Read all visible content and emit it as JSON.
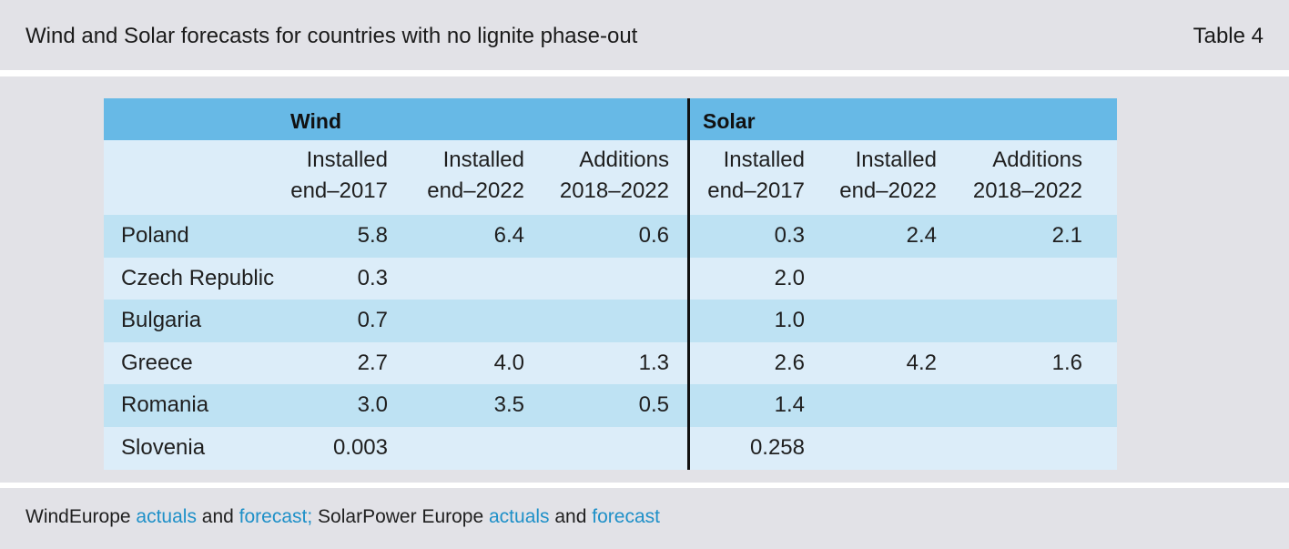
{
  "header": {
    "title": "Wind and Solar forecasts for countries with no lignite phase-out",
    "table_label": "Table 4"
  },
  "table": {
    "groups": {
      "wind": "Wind",
      "solar": "Solar"
    },
    "columns": {
      "wind_installed_2017": [
        "Installed",
        "end–2017"
      ],
      "wind_installed_2022": [
        "Installed",
        "end–2022"
      ],
      "wind_additions": [
        "Additions",
        "2018–2022"
      ],
      "solar_installed_2017": [
        "Installed",
        "end–2017"
      ],
      "solar_installed_2022": [
        "Installed",
        "end–2022"
      ],
      "solar_additions": [
        "Additions",
        "2018–2022"
      ]
    },
    "rows": [
      {
        "country": "Poland",
        "wind_2017": "5.8",
        "wind_2022": "6.4",
        "wind_add": "0.6",
        "solar_2017": "0.3",
        "solar_2022": "2.4",
        "solar_add": "2.1"
      },
      {
        "country": "Czech Republic",
        "wind_2017": "0.3",
        "wind_2022": "",
        "wind_add": "",
        "solar_2017": "2.0",
        "solar_2022": "",
        "solar_add": ""
      },
      {
        "country": "Bulgaria",
        "wind_2017": "0.7",
        "wind_2022": "",
        "wind_add": "",
        "solar_2017": "1.0",
        "solar_2022": "",
        "solar_add": ""
      },
      {
        "country": "Greece",
        "wind_2017": "2.7",
        "wind_2022": "4.0",
        "wind_add": "1.3",
        "solar_2017": "2.6",
        "solar_2022": "4.2",
        "solar_add": "1.6"
      },
      {
        "country": "Romania",
        "wind_2017": "3.0",
        "wind_2022": "3.5",
        "wind_add": "0.5",
        "solar_2017": "1.4",
        "solar_2022": "",
        "solar_add": ""
      },
      {
        "country": "Slovenia",
        "wind_2017": "0.003",
        "wind_2022": "",
        "wind_add": "",
        "solar_2017": "0.258",
        "solar_2022": "",
        "solar_add": ""
      }
    ]
  },
  "footer": {
    "source_prefix": "WindEurope ",
    "link_1": "actuals",
    "and_1": " and ",
    "link_2": "forecast;",
    "middle": " SolarPower Europe ",
    "link_3": "actuals",
    "and_2": " and ",
    "link_4": "forecast"
  },
  "colors": {
    "group_header_bg": "#67b9e6",
    "row_dark": "#bee2f3",
    "row_light": "#dcedf9",
    "panel_bg": "#e2e2e7",
    "link": "#1e90c8"
  }
}
